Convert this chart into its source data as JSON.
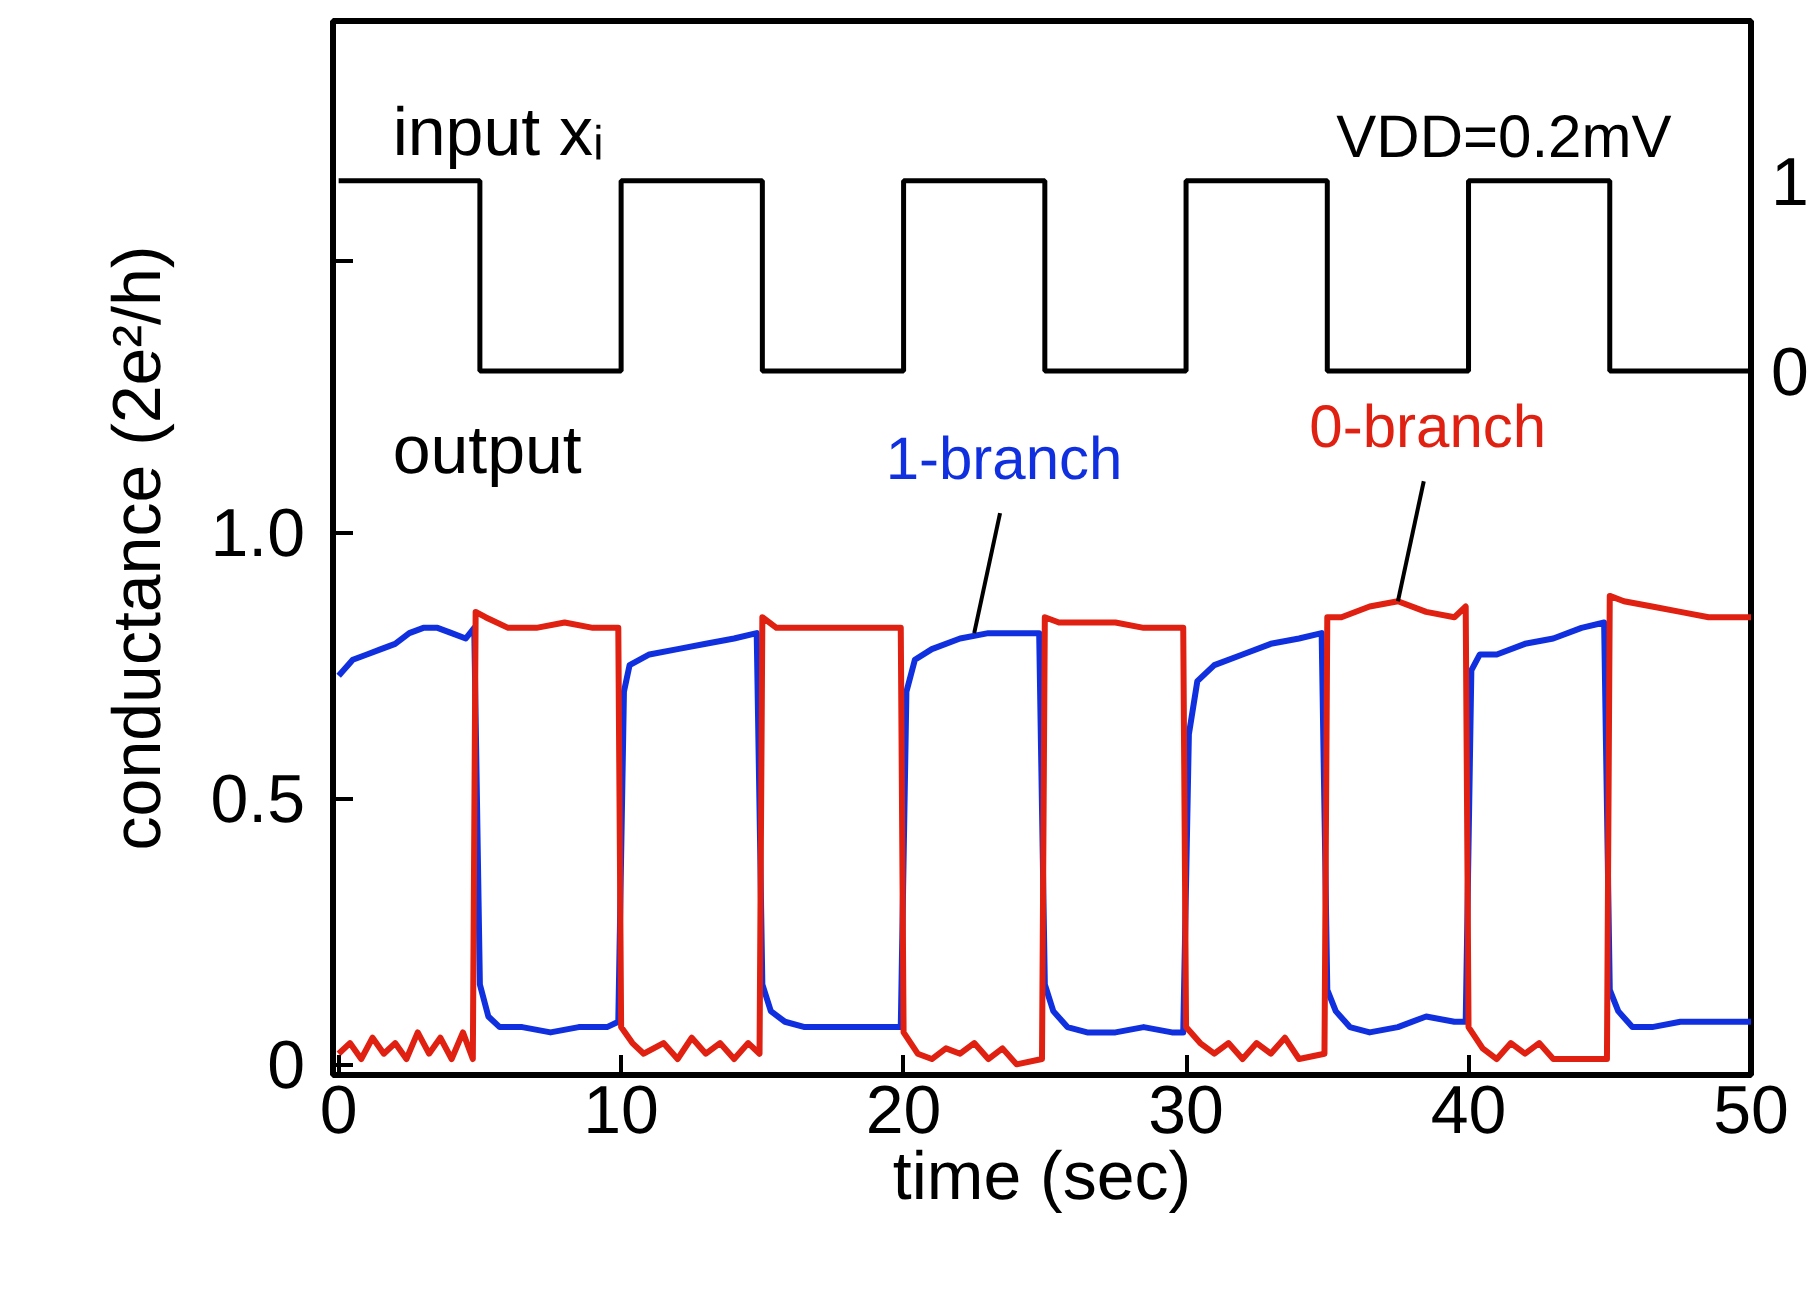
{
  "chart_data": {
    "type": "line",
    "xlabel": "time (sec)",
    "ylabel": "conductance (2e²/h)",
    "xlim": [
      -0.2,
      50
    ],
    "xticks": [
      0,
      10,
      20,
      30,
      40,
      50
    ],
    "ylim": [
      -0.02,
      1.96
    ],
    "yticks": [
      0,
      0.5,
      {
        "value": 1.0,
        "label": "1.0"
      },
      {
        "value": 1.51,
        "label": null
      }
    ],
    "y2lim": [
      -3.7,
      1.84
    ],
    "y2ticks": [
      0,
      1
    ],
    "grid": false,
    "tick_labels": "xy",
    "series": [
      {
        "type": "step",
        "axis": "y2",
        "color": "#000000",
        "x": [
          0,
          5,
          10,
          15,
          20,
          25,
          30,
          35,
          40,
          45,
          50
        ],
        "values": [
          1,
          0,
          1,
          0,
          1,
          0,
          1,
          0,
          1,
          0,
          0
        ]
      },
      {
        "color": "#1030e0",
        "x": [
          0,
          0.5,
          1,
          1.5,
          2,
          2.5,
          3,
          3.5,
          4,
          4.5,
          4.8,
          5.0,
          5.3,
          5.7,
          6.5,
          7.5,
          8.5,
          9.5,
          9.9,
          10.1,
          10.3,
          11,
          12,
          13,
          14,
          14.8,
          15.0,
          15.3,
          15.8,
          16.5,
          17.5,
          18.5,
          19.5,
          19.9,
          20.1,
          20.4,
          21,
          22,
          23,
          24,
          24.8,
          25.0,
          25.3,
          25.8,
          26.5,
          27.5,
          28.5,
          29.5,
          29.9,
          30.1,
          30.4,
          31,
          32,
          33,
          34,
          34.8,
          35.0,
          35.3,
          35.8,
          36.5,
          37.5,
          38.5,
          39.5,
          39.9,
          40.1,
          40.4,
          41,
          42,
          43,
          44,
          44.8,
          45.0,
          45.3,
          45.8,
          46.5,
          47.5,
          48.5,
          50
        ],
        "values": [
          0.73,
          0.76,
          0.77,
          0.78,
          0.79,
          0.81,
          0.82,
          0.82,
          0.81,
          0.8,
          0.82,
          0.15,
          0.09,
          0.07,
          0.07,
          0.06,
          0.07,
          0.07,
          0.08,
          0.7,
          0.75,
          0.77,
          0.78,
          0.79,
          0.8,
          0.81,
          0.15,
          0.1,
          0.08,
          0.07,
          0.07,
          0.07,
          0.07,
          0.07,
          0.7,
          0.76,
          0.78,
          0.8,
          0.81,
          0.81,
          0.81,
          0.15,
          0.1,
          0.07,
          0.06,
          0.06,
          0.07,
          0.06,
          0.06,
          0.62,
          0.72,
          0.75,
          0.77,
          0.79,
          0.8,
          0.81,
          0.14,
          0.1,
          0.07,
          0.06,
          0.07,
          0.09,
          0.08,
          0.08,
          0.74,
          0.77,
          0.77,
          0.79,
          0.8,
          0.82,
          0.83,
          0.14,
          0.1,
          0.07,
          0.07,
          0.08,
          0.08,
          0.08
        ]
      },
      {
        "color": "#e02010",
        "x": [
          0,
          0.4,
          0.8,
          1.2,
          1.6,
          2.0,
          2.4,
          2.8,
          3.2,
          3.6,
          4.0,
          4.4,
          4.75,
          4.85,
          5.2,
          6,
          7,
          8,
          9,
          9.9,
          10.0,
          10.4,
          10.8,
          11.5,
          12,
          12.5,
          13,
          13.5,
          14,
          14.5,
          14.9,
          15.0,
          15.5,
          16.5,
          17.5,
          18.5,
          19.9,
          20.0,
          20.5,
          21,
          21.5,
          22,
          22.5,
          23,
          23.5,
          24,
          24.9,
          25.0,
          25.5,
          26.5,
          27.5,
          28.5,
          29.9,
          30.0,
          30.5,
          31,
          31.5,
          32,
          32.5,
          33,
          33.5,
          34,
          34.9,
          35.0,
          35.5,
          36.5,
          37.5,
          38.5,
          39.5,
          39.9,
          40.0,
          40.5,
          41,
          41.5,
          42,
          42.5,
          43,
          43.5,
          44,
          44.9,
          45.0,
          45.5,
          46.5,
          47.5,
          48.5,
          49.5,
          50
        ],
        "values": [
          0.02,
          0.04,
          0.01,
          0.05,
          0.02,
          0.04,
          0.01,
          0.06,
          0.02,
          0.05,
          0.01,
          0.06,
          0.01,
          0.85,
          0.84,
          0.82,
          0.82,
          0.83,
          0.82,
          0.82,
          0.07,
          0.04,
          0.02,
          0.04,
          0.01,
          0.05,
          0.02,
          0.04,
          0.01,
          0.04,
          0.02,
          0.84,
          0.82,
          0.82,
          0.82,
          0.82,
          0.82,
          0.06,
          0.02,
          0.01,
          0.03,
          0.02,
          0.04,
          0.01,
          0.03,
          0.0,
          0.01,
          0.84,
          0.83,
          0.83,
          0.83,
          0.82,
          0.82,
          0.07,
          0.04,
          0.02,
          0.04,
          0.01,
          0.04,
          0.02,
          0.05,
          0.01,
          0.02,
          0.84,
          0.84,
          0.86,
          0.87,
          0.85,
          0.84,
          0.86,
          0.07,
          0.03,
          0.01,
          0.04,
          0.02,
          0.04,
          0.01,
          0.01,
          0.01,
          0.01,
          0.88,
          0.87,
          0.86,
          0.85,
          0.84,
          0.84,
          0.84
        ]
      }
    ],
    "annotations": [
      {
        "text": "1-branch",
        "x": 22.5,
        "y": 0.81
      },
      {
        "text": "0-branch",
        "x": 37.5,
        "y": 0.87
      },
      "output",
      "input xᵢ",
      "VDD=0.2mV"
    ]
  }
}
